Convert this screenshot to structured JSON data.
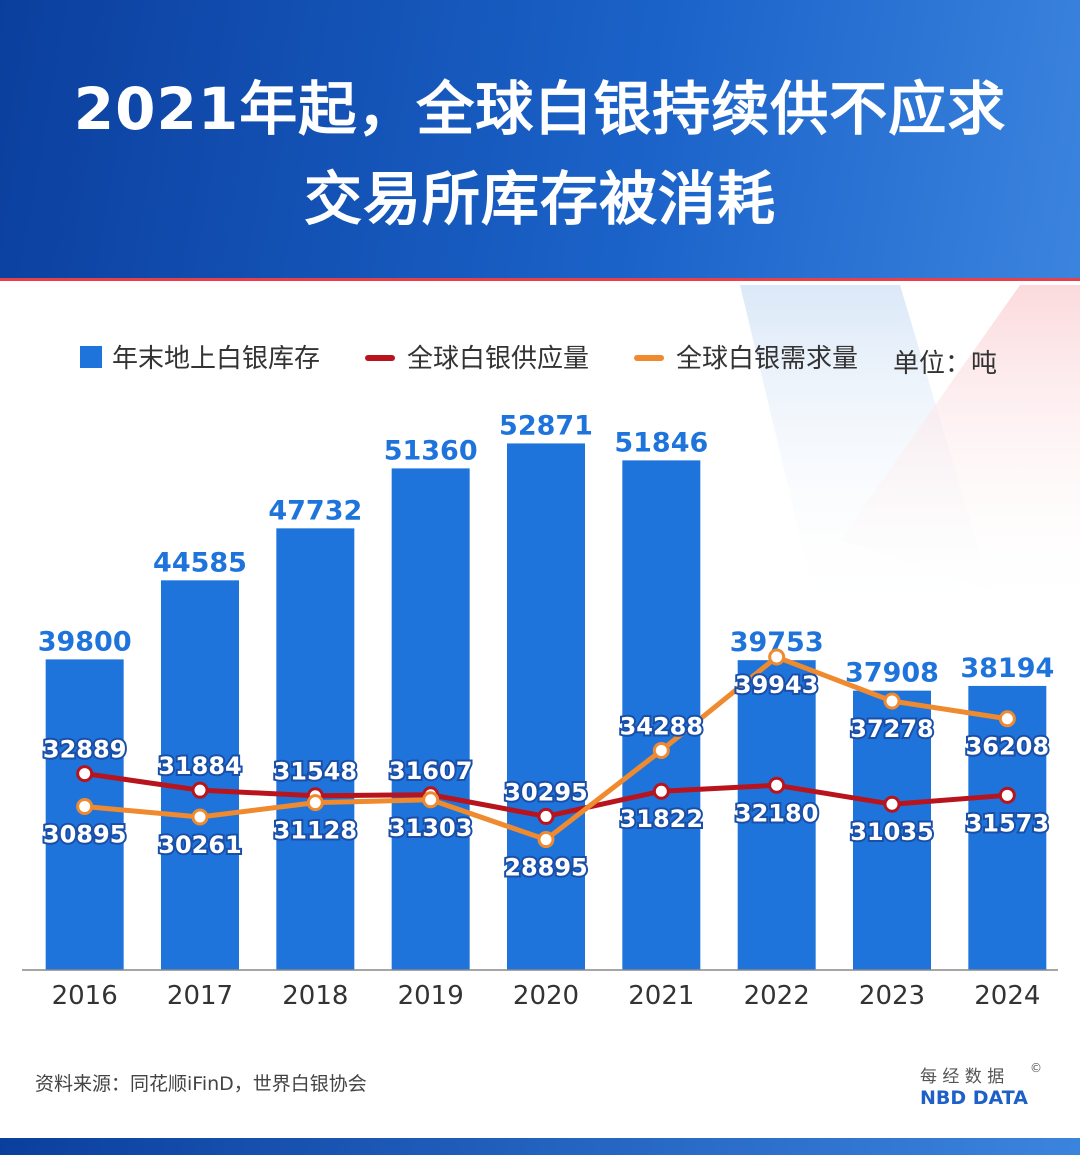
{
  "title": [
    "2021年起，全球白银持续供不应求",
    "交易所库存被消耗"
  ],
  "chart_data": {
    "type": "bar",
    "unit": "单位：吨",
    "categories": [
      "2016",
      "2017",
      "2018",
      "2019",
      "2020",
      "2021",
      "2022",
      "2023",
      "2024"
    ],
    "series": [
      {
        "name": "年末地上白银库存",
        "type": "bar",
        "color": "#1f74dc",
        "values": [
          39800,
          44585,
          47732,
          51360,
          52871,
          51846,
          39753,
          37908,
          38194
        ]
      },
      {
        "name": "全球白银供应量",
        "type": "line",
        "color": "#b8141d",
        "values": [
          32889,
          31884,
          31548,
          31607,
          30295,
          31822,
          32180,
          31035,
          31573
        ]
      },
      {
        "name": "全球白银需求量",
        "type": "line",
        "color": "#ef8a2e",
        "values": [
          30895,
          30261,
          31128,
          31303,
          28895,
          34288,
          39943,
          37278,
          36208
        ]
      }
    ],
    "ylim": [
      21000,
      55500
    ]
  },
  "source": "资料来源：同花顺iFinD，世界白银协会",
  "logo": {
    "cn": "每 经 数 据",
    "en": "NBD DATA",
    "mark": "©"
  }
}
